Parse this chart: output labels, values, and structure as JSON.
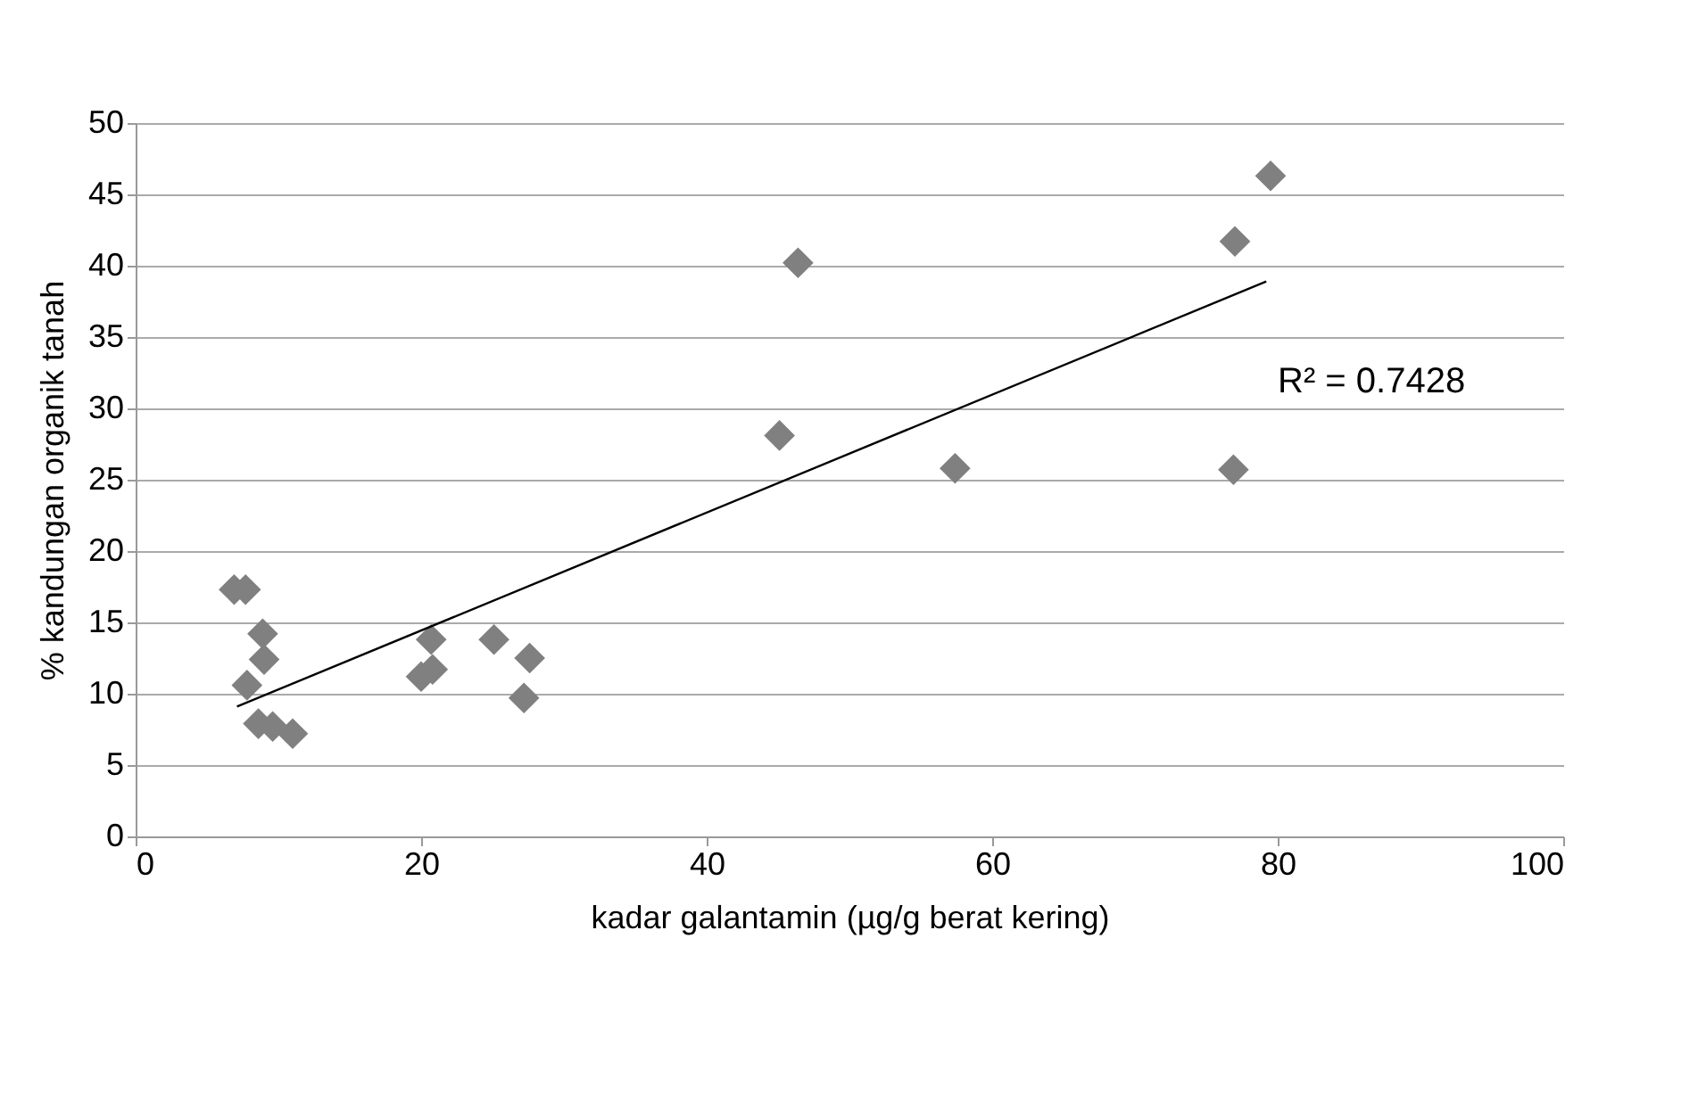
{
  "chart_data": {
    "type": "scatter",
    "xlabel": "kadar galantamin (µg/g berat kering)",
    "ylabel": "% kandungan organik tanah",
    "xlim": [
      0,
      100
    ],
    "xticks": [
      0,
      20,
      40,
      60,
      80,
      100
    ],
    "ylim": [
      0,
      50
    ],
    "yticks": [
      0,
      5,
      10,
      15,
      20,
      25,
      30,
      35,
      40,
      45,
      50
    ],
    "grid": "y",
    "marker": "diamond",
    "series": [
      {
        "color": "#808080",
        "x": [
          6.9,
          7.7,
          8.9,
          9.0,
          7.8,
          8.6,
          9.6,
          11.0,
          20.7,
          20.8,
          20.0,
          25.1,
          27.6,
          27.2,
          46.4,
          45.1,
          57.4,
          76.9,
          77.0,
          79.5
        ],
        "values": [
          17.3,
          17.3,
          14.2,
          12.4,
          10.6,
          7.9,
          7.7,
          7.2,
          13.8,
          11.7,
          11.2,
          13.8,
          12.5,
          9.7,
          40.2,
          28.1,
          25.8,
          25.7,
          41.7,
          46.3
        ]
      },
      {
        "type": "line",
        "color": "#000000",
        "line_style": "solid",
        "marker": "none",
        "x": [
          7.1,
          79.2
        ],
        "values": [
          9.1,
          38.9
        ]
      }
    ],
    "annotations": [
      "R² = 0.7428"
    ]
  }
}
